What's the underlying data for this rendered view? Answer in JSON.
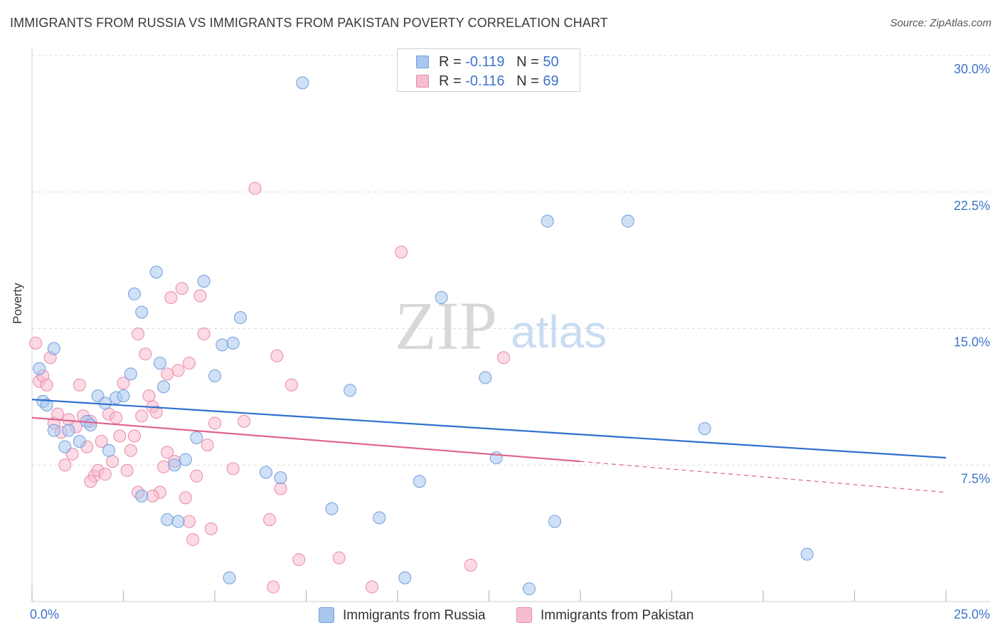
{
  "title": "IMMIGRANTS FROM RUSSIA VS IMMIGRANTS FROM PAKISTAN POVERTY CORRELATION CHART",
  "source": "Source: ZipAtlas.com",
  "watermark": {
    "zip": "ZIP",
    "atlas": "atlas"
  },
  "colors": {
    "russia_fill": "#a9c6ee",
    "russia_stroke": "#6f9fdc",
    "russia_line": "#2e6fcf",
    "pakistan_fill": "#f7bcd0",
    "pakistan_stroke": "#e889a9",
    "pakistan_line": "#e0648e",
    "tick_text": "#3f74c9",
    "grid": "#dddddd"
  },
  "legend_top": [
    {
      "r_label": "R = ",
      "r_value": "-0.119",
      "n_label": "N = ",
      "n_value": "50"
    },
    {
      "r_label": "R = ",
      "r_value": "-0.116",
      "n_label": "N = ",
      "n_value": "69"
    }
  ],
  "chart_data": {
    "type": "scatter",
    "title": "IMMIGRANTS FROM RUSSIA VS IMMIGRANTS FROM PAKISTAN POVERTY CORRELATION CHART",
    "ylabel": "Poverty",
    "xlim": [
      0,
      25
    ],
    "ylim": [
      0,
      30
    ],
    "x_tick_labels": [
      "0.0%",
      "25.0%"
    ],
    "y_ticks": [
      7.5,
      15.0,
      22.5,
      30.0
    ],
    "y_tick_labels": [
      "7.5%",
      "15.0%",
      "22.5%",
      "30.0%"
    ],
    "series": [
      {
        "name": "Immigrants from Russia",
        "r": -0.119,
        "n": 50,
        "trend": {
          "x0": 0,
          "y0": 11.1,
          "x1": 25,
          "y1": 7.9
        },
        "points": [
          [
            0.2,
            12.8
          ],
          [
            0.3,
            11.0
          ],
          [
            0.4,
            10.8
          ],
          [
            0.6,
            13.9
          ],
          [
            0.6,
            9.4
          ],
          [
            0.9,
            8.5
          ],
          [
            1.0,
            9.4
          ],
          [
            1.3,
            8.8
          ],
          [
            1.5,
            9.9
          ],
          [
            1.6,
            9.7
          ],
          [
            1.8,
            11.3
          ],
          [
            2.0,
            10.9
          ],
          [
            2.1,
            8.3
          ],
          [
            2.3,
            11.2
          ],
          [
            2.5,
            11.3
          ],
          [
            2.7,
            12.5
          ],
          [
            2.8,
            16.9
          ],
          [
            3.0,
            15.9
          ],
          [
            3.0,
            5.8
          ],
          [
            3.4,
            18.1
          ],
          [
            3.5,
            13.1
          ],
          [
            3.6,
            11.8
          ],
          [
            3.7,
            4.5
          ],
          [
            3.9,
            7.5
          ],
          [
            4.0,
            4.4
          ],
          [
            4.2,
            7.8
          ],
          [
            4.5,
            9.0
          ],
          [
            4.7,
            17.6
          ],
          [
            5.0,
            12.4
          ],
          [
            5.2,
            14.1
          ],
          [
            5.5,
            14.2
          ],
          [
            5.7,
            15.6
          ],
          [
            6.4,
            7.1
          ],
          [
            6.8,
            6.8
          ],
          [
            7.4,
            28.5
          ],
          [
            8.2,
            5.1
          ],
          [
            8.7,
            11.6
          ],
          [
            9.5,
            4.6
          ],
          [
            10.2,
            1.3
          ],
          [
            10.6,
            6.6
          ],
          [
            11.2,
            16.7
          ],
          [
            12.4,
            12.3
          ],
          [
            12.7,
            7.9
          ],
          [
            13.6,
            0.7
          ],
          [
            14.1,
            20.9
          ],
          [
            14.3,
            4.4
          ],
          [
            16.3,
            20.9
          ],
          [
            18.4,
            9.5
          ],
          [
            21.2,
            2.6
          ],
          [
            5.4,
            1.3
          ]
        ]
      },
      {
        "name": "Immigrants from Pakistan",
        "r": -0.116,
        "n": 69,
        "trend": {
          "x0": 0,
          "y0": 10.1,
          "x1": 15.0,
          "y1": 7.7
        },
        "trend_dashed": {
          "x0": 15.0,
          "y0": 7.7,
          "x1": 25,
          "y1": 6.0
        },
        "points": [
          [
            0.1,
            14.2
          ],
          [
            0.2,
            12.1
          ],
          [
            0.3,
            12.4
          ],
          [
            0.4,
            11.9
          ],
          [
            0.5,
            13.4
          ],
          [
            0.6,
            9.8
          ],
          [
            0.7,
            10.3
          ],
          [
            0.8,
            9.3
          ],
          [
            0.9,
            7.5
          ],
          [
            1.0,
            10.0
          ],
          [
            1.1,
            8.1
          ],
          [
            1.2,
            9.6
          ],
          [
            1.3,
            11.9
          ],
          [
            1.4,
            10.2
          ],
          [
            1.5,
            8.5
          ],
          [
            1.6,
            9.9
          ],
          [
            1.7,
            6.9
          ],
          [
            1.8,
            7.2
          ],
          [
            1.9,
            8.8
          ],
          [
            2.0,
            7.0
          ],
          [
            2.1,
            10.3
          ],
          [
            2.2,
            7.7
          ],
          [
            2.3,
            10.1
          ],
          [
            2.4,
            9.1
          ],
          [
            2.5,
            12.0
          ],
          [
            2.6,
            7.2
          ],
          [
            2.7,
            8.3
          ],
          [
            2.8,
            9.1
          ],
          [
            2.9,
            14.7
          ],
          [
            3.0,
            10.2
          ],
          [
            3.1,
            13.6
          ],
          [
            3.2,
            11.3
          ],
          [
            3.3,
            10.7
          ],
          [
            3.4,
            10.4
          ],
          [
            3.5,
            6.0
          ],
          [
            3.6,
            7.4
          ],
          [
            3.7,
            8.2
          ],
          [
            3.8,
            16.7
          ],
          [
            3.9,
            7.7
          ],
          [
            4.0,
            12.7
          ],
          [
            4.1,
            17.2
          ],
          [
            4.2,
            5.7
          ],
          [
            4.3,
            13.1
          ],
          [
            4.4,
            3.4
          ],
          [
            4.5,
            6.9
          ],
          [
            4.6,
            16.8
          ],
          [
            4.7,
            14.7
          ],
          [
            4.8,
            8.6
          ],
          [
            4.9,
            4.0
          ],
          [
            5.0,
            9.8
          ],
          [
            5.5,
            7.3
          ],
          [
            5.8,
            9.9
          ],
          [
            6.1,
            22.7
          ],
          [
            6.5,
            4.5
          ],
          [
            6.7,
            13.5
          ],
          [
            6.8,
            6.2
          ],
          [
            7.1,
            11.9
          ],
          [
            7.3,
            2.3
          ],
          [
            8.4,
            2.4
          ],
          [
            9.3,
            0.8
          ],
          [
            10.1,
            19.2
          ],
          [
            12.0,
            2.0
          ],
          [
            12.9,
            13.4
          ],
          [
            6.6,
            0.8
          ],
          [
            3.7,
            12.5
          ],
          [
            2.9,
            6.0
          ],
          [
            1.6,
            6.6
          ],
          [
            4.3,
            4.4
          ],
          [
            3.3,
            5.8
          ]
        ]
      }
    ]
  },
  "legend_bottom": [
    "Immigrants from Russia",
    "Immigrants from Pakistan"
  ]
}
